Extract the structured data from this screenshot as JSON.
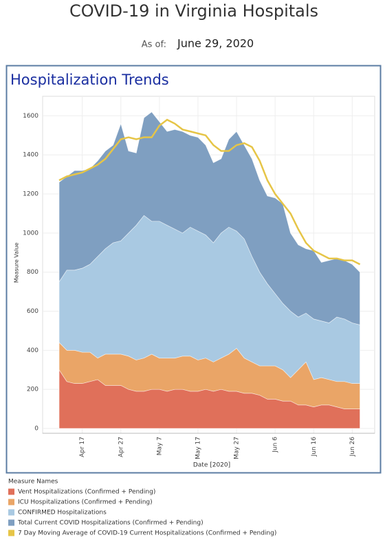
{
  "header": {
    "title": "COVID-19 in Virginia Hospitals",
    "as_of_label": "As of:",
    "as_of_date": "June 29, 2020"
  },
  "chart_data": {
    "type": "area",
    "title": "Hospitalization Trends",
    "y_label": "Measure Value",
    "x_label": "Date [2020]",
    "legend_title": "Measure Names",
    "categories": [
      null,
      null,
      null,
      "Apr 17",
      null,
      null,
      null,
      null,
      "Apr 27",
      null,
      null,
      null,
      null,
      "May 7",
      null,
      null,
      null,
      null,
      "May 17",
      null,
      null,
      null,
      null,
      "May 27",
      null,
      null,
      null,
      null,
      "Jun 6",
      null,
      null,
      null,
      null,
      "Jun 16",
      null,
      null,
      null,
      null,
      "Jun 26",
      null
    ],
    "ylim": [
      0,
      1700
    ],
    "yticks": [
      0,
      200,
      400,
      600,
      800,
      1000,
      1200,
      1400,
      1600
    ],
    "grid": true,
    "series": [
      {
        "name": "Vent Hospitalizations (Confirmed + Pending)",
        "color": "#e0705a",
        "values": [
          300,
          240,
          230,
          230,
          240,
          250,
          220,
          220,
          220,
          200,
          190,
          190,
          200,
          200,
          190,
          200,
          200,
          190,
          190,
          200,
          190,
          200,
          190,
          190,
          180,
          180,
          170,
          150,
          150,
          140,
          140,
          120,
          120,
          110,
          120,
          120,
          110,
          100,
          100,
          100
        ]
      },
      {
        "name": "ICU Hospitalizations (Confirmed + Pending)",
        "color": "#eaa567",
        "values": [
          440,
          400,
          400,
          390,
          390,
          360,
          380,
          380,
          380,
          370,
          350,
          360,
          380,
          360,
          360,
          360,
          370,
          370,
          350,
          360,
          340,
          360,
          380,
          410,
          360,
          340,
          320,
          320,
          320,
          300,
          260,
          300,
          340,
          250,
          260,
          250,
          240,
          240,
          230,
          230
        ]
      },
      {
        "name": "CONFIRMED Hospitalizations",
        "color": "#a9c9e2",
        "values": [
          750,
          810,
          810,
          820,
          840,
          880,
          920,
          950,
          960,
          1000,
          1040,
          1090,
          1060,
          1060,
          1040,
          1020,
          1000,
          1030,
          1010,
          990,
          950,
          1000,
          1030,
          1010,
          970,
          880,
          800,
          740,
          690,
          640,
          600,
          570,
          590,
          560,
          550,
          540,
          570,
          560,
          540,
          530
        ]
      },
      {
        "name": "Total Current COVID Hospitalizations (Confirmed + Pending)",
        "color": "#7f9fc1",
        "values": [
          1260,
          1290,
          1320,
          1320,
          1330,
          1370,
          1420,
          1450,
          1560,
          1420,
          1410,
          1590,
          1620,
          1570,
          1520,
          1530,
          1520,
          1500,
          1490,
          1450,
          1360,
          1380,
          1480,
          1520,
          1450,
          1380,
          1270,
          1190,
          1180,
          1150,
          1000,
          940,
          920,
          910,
          850,
          860,
          870,
          860,
          840,
          800
        ]
      },
      {
        "name": "7 Day Moving Average of COVID-19 Current Hospitalizations (Confirmed + Pending)",
        "color": "#e6c547",
        "line": true,
        "values": [
          1270,
          1290,
          1300,
          1310,
          1330,
          1350,
          1380,
          1430,
          1480,
          1490,
          1480,
          1490,
          1490,
          1550,
          1580,
          1560,
          1530,
          1520,
          1510,
          1500,
          1450,
          1420,
          1420,
          1450,
          1460,
          1440,
          1370,
          1270,
          1200,
          1150,
          1100,
          1020,
          950,
          910,
          890,
          870,
          870,
          860,
          860,
          840
        ]
      }
    ]
  }
}
